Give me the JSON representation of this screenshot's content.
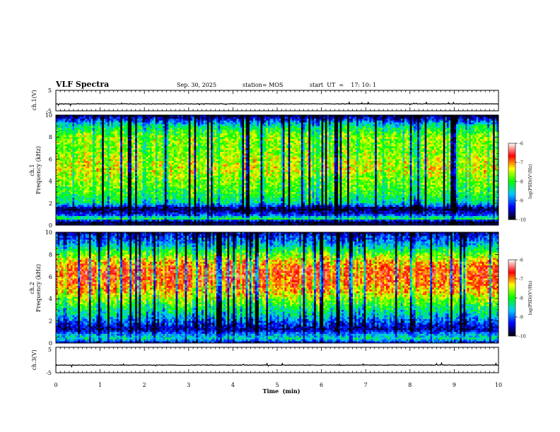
{
  "header": {
    "title": "VLF Spectra",
    "date": "Sep. 30, 2025",
    "station": "station= MOS",
    "start": "start  UT  =    17: 10: 1"
  },
  "chart_data": [
    {
      "type": "line",
      "id": "ch1-waveform",
      "ylabel": "ch.1(V)",
      "ylim": [
        -5,
        5
      ],
      "xlim": [
        0,
        10
      ],
      "yticks": [
        "5",
        "-5"
      ],
      "baseline": -1.6
    },
    {
      "type": "heatmap",
      "id": "ch1-spectrogram",
      "ylabel": [
        "ch.1",
        "Frequency  (kHz)"
      ],
      "xlim": [
        0,
        10
      ],
      "ylim": [
        0,
        10
      ],
      "yticks": [
        "0",
        "2",
        "4",
        "6",
        "8",
        "10"
      ],
      "colorbar": {
        "label": "log(PSD)(V²/Hz)",
        "range": [
          -10,
          -6
        ],
        "ticks": [
          "-6",
          "-7",
          "-8",
          "-9",
          "-10"
        ]
      },
      "band_levels": [
        {
          "f": 0.0,
          "v": -9.6
        },
        {
          "f": 0.3,
          "v": -10.0
        },
        {
          "f": 0.6,
          "v": -8.1
        },
        {
          "f": 1.0,
          "v": -9.3
        },
        {
          "f": 1.5,
          "v": -9.9
        },
        {
          "f": 2.0,
          "v": -8.5
        },
        {
          "f": 3.0,
          "v": -8.0
        },
        {
          "f": 4.0,
          "v": -7.8
        },
        {
          "f": 5.0,
          "v": -7.5
        },
        {
          "f": 6.0,
          "v": -7.6
        },
        {
          "f": 7.0,
          "v": -7.8
        },
        {
          "f": 8.0,
          "v": -7.7
        },
        {
          "f": 9.0,
          "v": -8.4
        },
        {
          "f": 9.5,
          "v": -9.2
        },
        {
          "f": 10.0,
          "v": -9.9
        }
      ]
    },
    {
      "type": "heatmap",
      "id": "ch2-spectrogram",
      "ylabel": [
        "ch.2",
        "Frequency  (kHz)"
      ],
      "xlim": [
        0,
        10
      ],
      "ylim": [
        0,
        10
      ],
      "yticks": [
        "0",
        "2",
        "4",
        "6",
        "8",
        "10"
      ],
      "colorbar": {
        "label": "log(PSD)(V²/Hz)",
        "range": [
          -10,
          -6
        ],
        "ticks": [
          "-6",
          "-7",
          "-8",
          "-9",
          "-10"
        ]
      },
      "band_levels": [
        {
          "f": 0.0,
          "v": -9.4
        },
        {
          "f": 0.4,
          "v": -8.4
        },
        {
          "f": 0.8,
          "v": -8.8
        },
        {
          "f": 1.2,
          "v": -9.6
        },
        {
          "f": 1.8,
          "v": -9.2
        },
        {
          "f": 2.5,
          "v": -8.6
        },
        {
          "f": 3.5,
          "v": -8.0
        },
        {
          "f": 4.5,
          "v": -7.3
        },
        {
          "f": 5.5,
          "v": -6.9
        },
        {
          "f": 6.5,
          "v": -6.8
        },
        {
          "f": 7.5,
          "v": -7.3
        },
        {
          "f": 8.2,
          "v": -8.0
        },
        {
          "f": 9.0,
          "v": -8.8
        },
        {
          "f": 10.0,
          "v": -9.6
        }
      ]
    },
    {
      "type": "line",
      "id": "ch3-waveform",
      "ylabel": "ch.3(V)",
      "ylim": [
        -5,
        5
      ],
      "xlim": [
        0,
        10
      ],
      "yticks": [
        "5",
        "-5"
      ],
      "baseline": -2.0
    }
  ],
  "xaxis": {
    "label": "Time  (min)",
    "ticks": [
      "0",
      "1",
      "2",
      "3",
      "4",
      "5",
      "6",
      "7",
      "8",
      "9",
      "10"
    ]
  },
  "colors": {
    "scale": [
      "#000000",
      "#0000ff",
      "#00c8ff",
      "#00ff00",
      "#ffff00",
      "#ff0000",
      "#ffffff"
    ]
  }
}
